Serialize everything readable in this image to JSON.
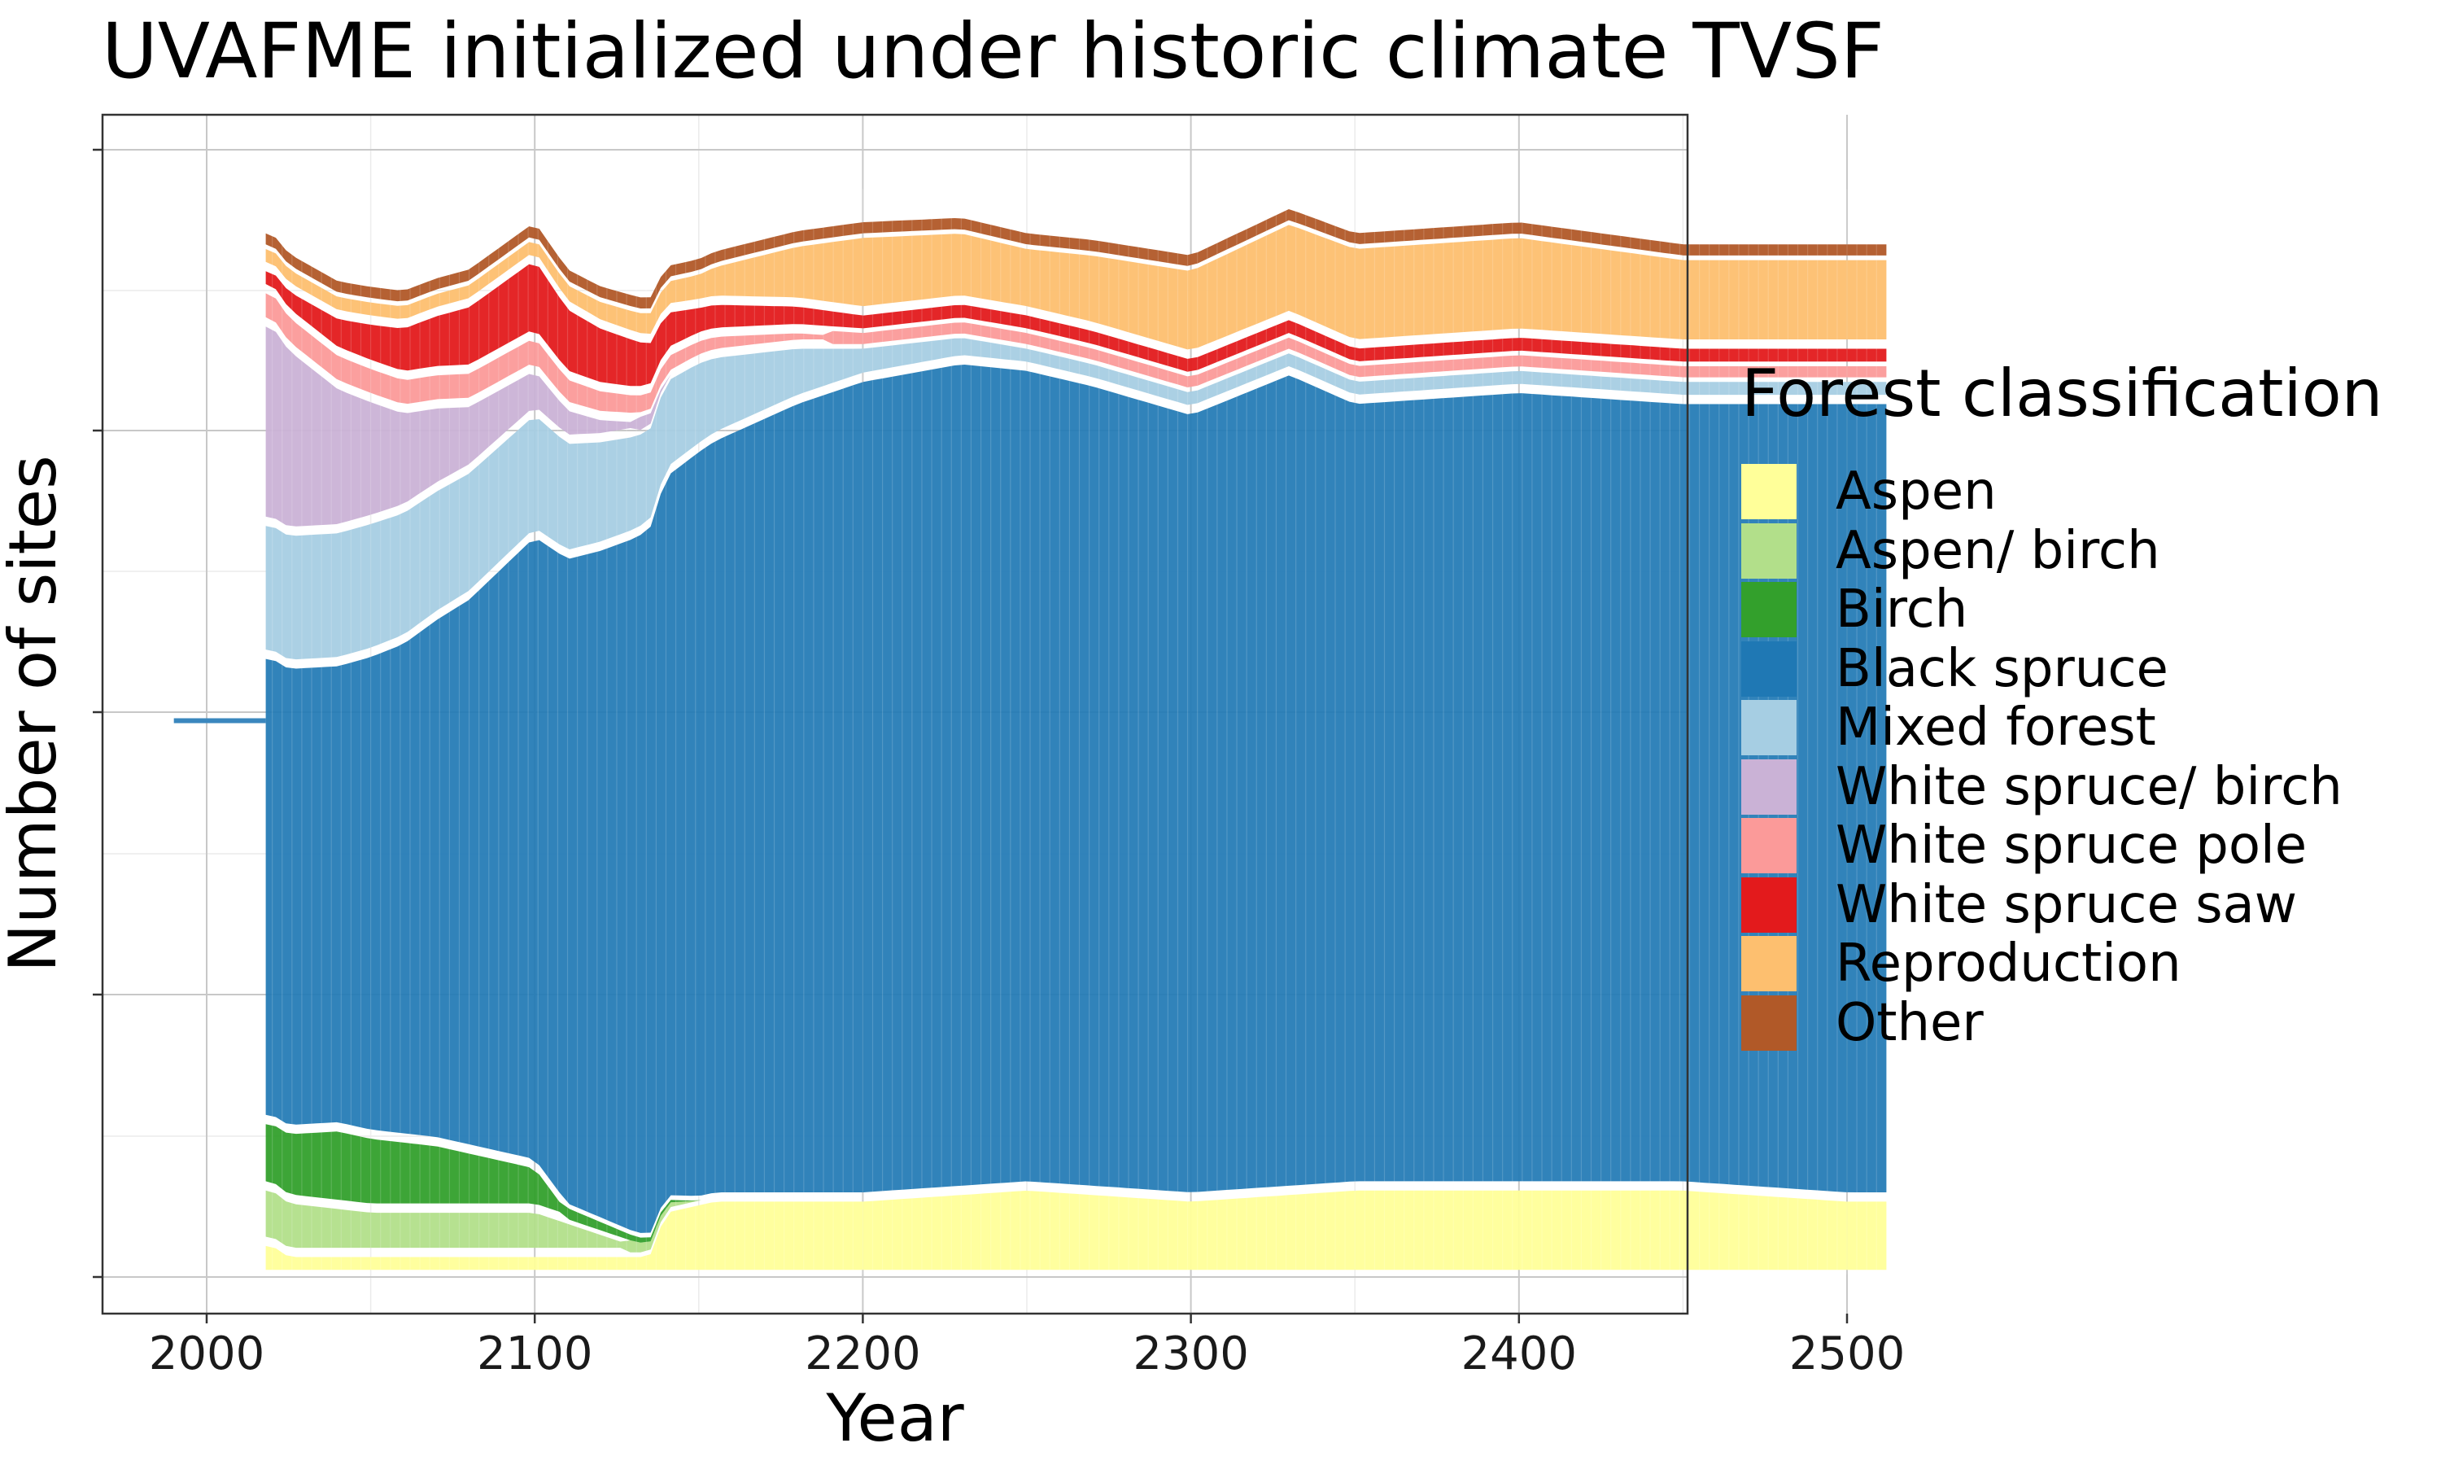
{
  "chart_data": {
    "type": "area",
    "title": "UVAFME initialized under historic climate TVSF",
    "xlabel": "Year",
    "ylabel": "Number of sites",
    "xlim": [
      1962,
      2540
    ],
    "xticks": [
      2000,
      2100,
      2200,
      2300,
      2400,
      2500
    ],
    "grid": true,
    "legend_title": "Forest classification",
    "legend_position": "right",
    "series": [
      {
        "name": "Aspen",
        "color": "#FFFF99",
        "x": [
          2020,
          2025,
          2050,
          2100,
          2135,
          2140,
          2155,
          2200,
          2250,
          2300,
          2350,
          2400,
          2450,
          2500,
          2512
        ],
        "y": [
          0.03,
          0.02,
          0.02,
          0.02,
          0.02,
          0.06,
          0.07,
          0.07,
          0.08,
          0.07,
          0.08,
          0.08,
          0.08,
          0.07,
          0.07
        ]
      },
      {
        "name": "Aspen/ birch",
        "color": "#B2DF8A",
        "x": [
          2020,
          2050,
          2100,
          2130,
          2150,
          2512
        ],
        "y": [
          0.05,
          0.04,
          0.04,
          0.01,
          0.0,
          0.0
        ]
      },
      {
        "name": "Birch",
        "color": "#33A02C",
        "x": [
          2020,
          2040,
          2070,
          2100,
          2110,
          2150,
          2512
        ],
        "y": [
          0.06,
          0.07,
          0.06,
          0.04,
          0.01,
          0.0,
          0.0
        ]
      },
      {
        "name": "Black spruce",
        "color": "#1F78B4",
        "x": [
          2020,
          2040,
          2060,
          2080,
          2100,
          2120,
          2150,
          2180,
          2200,
          2230,
          2250,
          2270,
          2300,
          2330,
          2350,
          2400,
          2450,
          2500,
          2512
        ],
        "y": [
          0.42,
          0.42,
          0.45,
          0.5,
          0.57,
          0.61,
          0.68,
          0.72,
          0.74,
          0.75,
          0.74,
          0.73,
          0.71,
          0.74,
          0.71,
          0.72,
          0.71,
          0.72,
          0.72
        ]
      },
      {
        "name": "Mixed forest",
        "color": "#A6CEE3",
        "x": [
          2020,
          2050,
          2100,
          2150,
          2200,
          2250,
          2300,
          2350,
          2400,
          2450,
          2512
        ],
        "y": [
          0.12,
          0.12,
          0.11,
          0.08,
          0.03,
          0.02,
          0.02,
          0.02,
          0.02,
          0.02,
          0.02
        ]
      },
      {
        "name": "White spruce/ birch",
        "color": "#CAB2D6",
        "x": [
          2020,
          2040,
          2060,
          2080,
          2100,
          2120,
          2135,
          2140,
          2512
        ],
        "y": [
          0.18,
          0.13,
          0.09,
          0.06,
          0.04,
          0.02,
          0.01,
          0.0,
          0.0
        ]
      },
      {
        "name": "White spruce pole",
        "color": "#FB9A99",
        "x": [
          2020,
          2100,
          2150,
          2200,
          2250,
          2300,
          2350,
          2400,
          2450,
          2512
        ],
        "y": [
          0.03,
          0.03,
          0.02,
          0.01,
          0.01,
          0.01,
          0.01,
          0.01,
          0.01,
          0.01
        ]
      },
      {
        "name": "White spruce saw",
        "color": "#E31A1C",
        "x": [
          2020,
          2050,
          2080,
          2100,
          2130,
          2150,
          2200,
          2250,
          2300,
          2350,
          2400,
          2450,
          2512
        ],
        "y": [
          0.02,
          0.04,
          0.06,
          0.07,
          0.05,
          0.03,
          0.02,
          0.02,
          0.02,
          0.02,
          0.02,
          0.02,
          0.02
        ]
      },
      {
        "name": "Reproduction",
        "color": "#FDBF6F",
        "x": [
          2020,
          2100,
          2150,
          2200,
          2250,
          2300,
          2350,
          2400,
          2450,
          2512
        ],
        "y": [
          0.02,
          0.02,
          0.03,
          0.07,
          0.06,
          0.08,
          0.09,
          0.09,
          0.08,
          0.08
        ]
      },
      {
        "name": "Other",
        "color": "#B15928",
        "x": [
          2020,
          2100,
          2150,
          2200,
          2300,
          2400,
          2512
        ],
        "y": [
          0.01,
          0.01,
          0.01,
          0.01,
          0.01,
          0.01,
          0.01
        ]
      }
    ],
    "pre_initialization_line": {
      "color": "#3A87BE",
      "x": [
        1990,
        2018
      ],
      "y": 0.5
    }
  }
}
